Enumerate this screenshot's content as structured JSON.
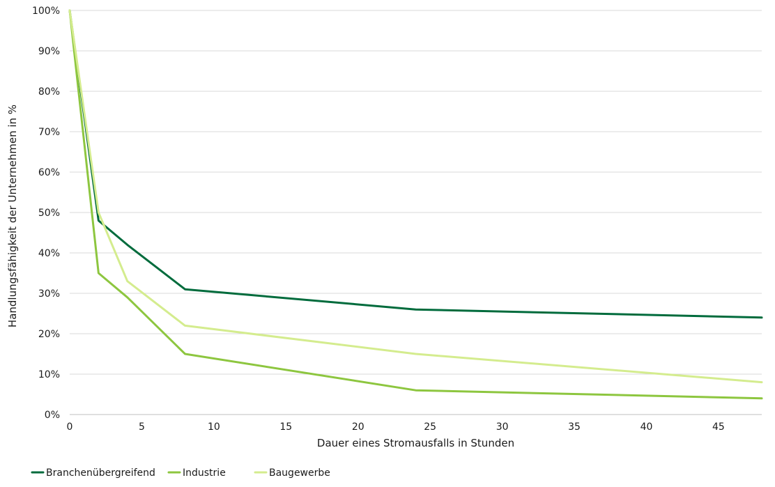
{
  "chart_data": {
    "type": "line",
    "title": "",
    "xlabel": "Dauer eines Stromausfalls in Stunden",
    "ylabel": "Handlungsfähigkeit der Unternehmen in %",
    "xlim": [
      0,
      48
    ],
    "ylim": [
      0,
      100
    ],
    "x_ticks": [
      0,
      5,
      10,
      15,
      20,
      25,
      30,
      35,
      40,
      45
    ],
    "x_tick_labels": [
      "0",
      "5",
      "10",
      "15",
      "20",
      "25",
      "30",
      "35",
      "40",
      "45"
    ],
    "y_ticks": [
      0,
      10,
      20,
      30,
      40,
      50,
      60,
      70,
      80,
      90,
      100
    ],
    "y_tick_labels": [
      "0%",
      "10%",
      "20%",
      "30%",
      "40%",
      "50%",
      "60%",
      "70%",
      "80%",
      "90%",
      "100%"
    ],
    "grid": "horizontal",
    "legend_position": "bottom-left",
    "series": [
      {
        "name": "Branchenübergreifend",
        "color": "#006b3c",
        "points": [
          [
            0,
            100
          ],
          [
            2,
            48
          ],
          [
            4,
            42
          ],
          [
            8,
            31
          ],
          [
            24,
            26
          ],
          [
            48,
            24
          ]
        ]
      },
      {
        "name": "Industrie",
        "color": "#8dc63f",
        "points": [
          [
            0,
            100
          ],
          [
            2,
            35
          ],
          [
            4,
            29
          ],
          [
            8,
            15
          ],
          [
            24,
            6
          ],
          [
            48,
            4
          ]
        ]
      },
      {
        "name": "Baugewerbe",
        "color": "#d4ec8e",
        "points": [
          [
            0,
            100
          ],
          [
            2,
            50
          ],
          [
            4,
            33
          ],
          [
            8,
            22
          ],
          [
            24,
            15
          ],
          [
            48,
            8
          ]
        ]
      }
    ]
  }
}
